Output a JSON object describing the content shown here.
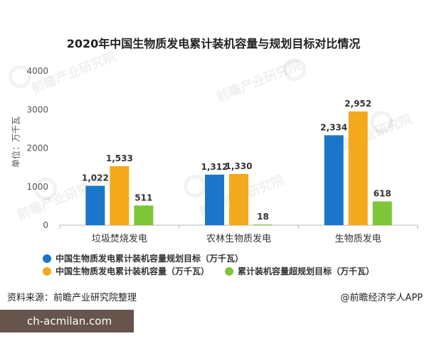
{
  "chart_data": {
    "type": "bar",
    "title": "2020年中国生物质发电累计装机容量与规划目标对比情况",
    "xlabel": "",
    "ylabel": "单位：万千瓦",
    "categories": [
      "垃圾焚烧发电",
      "农林生物质发电",
      "生物质发电"
    ],
    "ylim": [
      0,
      4000
    ],
    "yticks": [
      0,
      1000,
      2000,
      3000,
      4000
    ],
    "grid": false,
    "legend_position": "bottom-left",
    "series": [
      {
        "name": "中国生物质发电累计装机容量规划目标（万千瓦）",
        "values": [
          1022,
          1312,
          2334
        ],
        "labels": [
          "1,022",
          "1,312",
          "2,334"
        ],
        "color": "#1b76c9"
      },
      {
        "name": "中国生物质发电累计装机容量（万千瓦）",
        "values": [
          1533,
          1330,
          2952
        ],
        "labels": [
          "1,533",
          "1,330",
          "2,952"
        ],
        "color": "#f4a81b"
      },
      {
        "name": "累计装机容量超规划目标（万千瓦）",
        "values": [
          511,
          18,
          618
        ],
        "labels": [
          "511",
          "18",
          "618"
        ],
        "color": "#7dc63a"
      }
    ]
  },
  "footer": {
    "source": "资料来源：前瞻产业研究院整理",
    "credit": "@前瞻经济学人APP"
  },
  "overlay": {
    "site": "ch-acmilan.com"
  },
  "watermark": {
    "text": "前瞻产业研究院"
  }
}
